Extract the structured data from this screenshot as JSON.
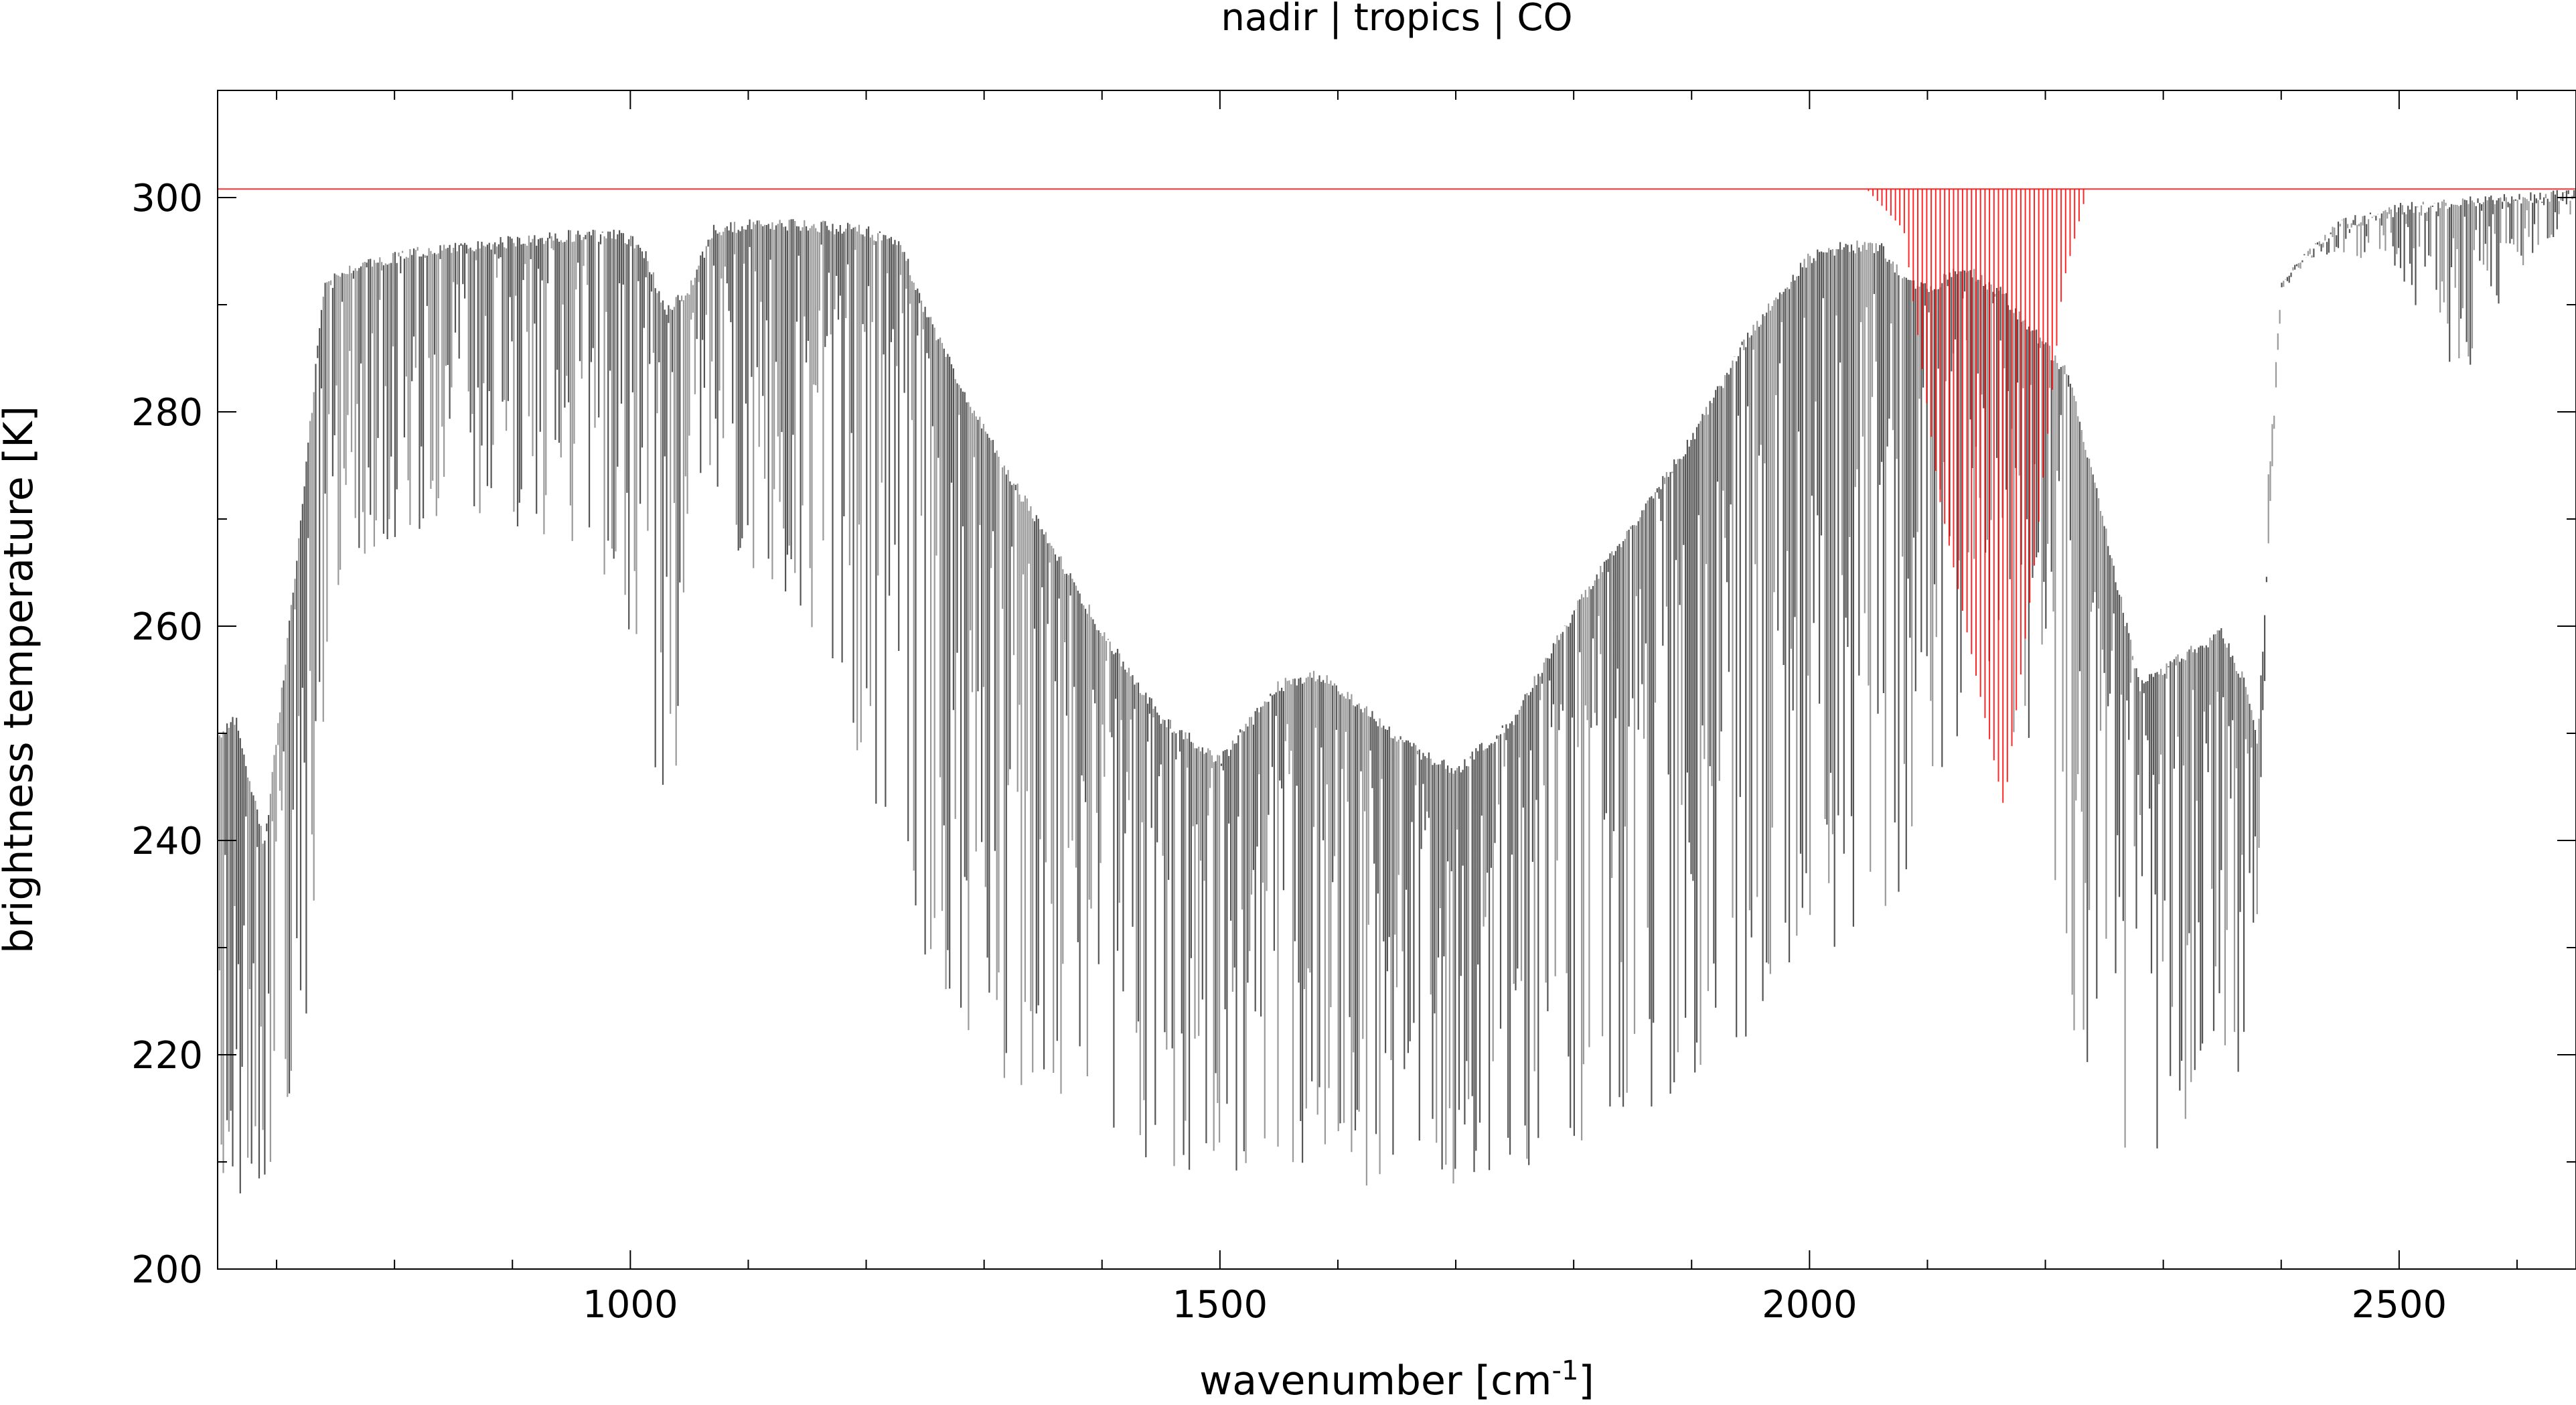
{
  "chart_data": {
    "type": "line",
    "title": "nadir | tropics | CO",
    "xlabel": "wavenumber [cm",
    "xlabel_sup": "-1",
    "xlabel_tail": "]",
    "ylabel": "brightness temperature [K]",
    "xlim": [
      650,
      2650
    ],
    "ylim": [
      200,
      310
    ],
    "x_major_ticks": [
      1000,
      1500,
      2000,
      2500
    ],
    "x_tick_labels": [
      "1000",
      "1500",
      "2000",
      "2500"
    ],
    "x_minor_step": 100,
    "y_major_ticks": [
      200,
      220,
      240,
      260,
      280,
      300
    ],
    "y_tick_labels": [
      "200",
      "220",
      "240",
      "260",
      "280",
      "300"
    ],
    "y_minor_step": 10,
    "grid": false,
    "legend": "none",
    "series": [
      {
        "color": "#555555",
        "style": "dense-lines",
        "envelope_x": [
          650,
          665,
          690,
          720,
          740,
          760,
          800,
          850,
          900,
          950,
          990,
          1010,
          1030,
          1050,
          1070,
          1100,
          1150,
          1200,
          1230,
          1250,
          1280,
          1320,
          1400,
          1450,
          1500,
          1550,
          1580,
          1600,
          1650,
          1700,
          1750,
          1800,
          1850,
          1900,
          1950,
          2000,
          2030,
          2060,
          2080,
          2100,
          2130,
          2160,
          2190,
          2220,
          2250,
          2280,
          2320,
          2350,
          2370,
          2380,
          2390,
          2400,
          2420,
          2450,
          2500,
          2550,
          2600,
          2650
        ],
        "envelope_top": [
          250,
          252,
          240,
          270,
          292,
          294,
          295,
          296,
          296.5,
          297,
          297,
          296,
          290,
          292,
          297.5,
          298,
          298,
          297.5,
          296,
          290,
          283,
          275,
          260,
          252,
          248,
          255,
          256,
          255,
          250,
          247,
          252,
          262,
          270,
          278,
          288,
          295,
          296,
          296,
          293,
          292,
          294,
          292,
          288,
          284,
          270,
          255,
          258,
          260,
          255,
          250,
          270,
          292,
          295,
          298,
          299.5,
          300,
          300.5,
          300.8
        ],
        "envelope_bottom": [
          207,
          206.5,
          207,
          215,
          248,
          265,
          268,
          270,
          269,
          268,
          262,
          250,
          244,
          250,
          268,
          265,
          260,
          245,
          232,
          225,
          220,
          216,
          212,
          209,
          208,
          208,
          208,
          208,
          207.5,
          208,
          209,
          210,
          212,
          218,
          222,
          228,
          230,
          229,
          236,
          244,
          250,
          258,
          240,
          220,
          214,
          209,
          212,
          218,
          214,
          210,
          280,
          292,
          294,
          295,
          293,
          282,
          292,
          299
        ]
      },
      {
        "color": "#ff0000",
        "style": "dense-lines",
        "baseline": 300.8,
        "band_x": [
          2050,
          2080,
          2110,
          2140,
          2165,
          2190,
          2215,
          2235
        ],
        "band_min": [
          300.6,
          297,
          272,
          256,
          243,
          265,
          292,
          300.5
        ]
      }
    ]
  }
}
